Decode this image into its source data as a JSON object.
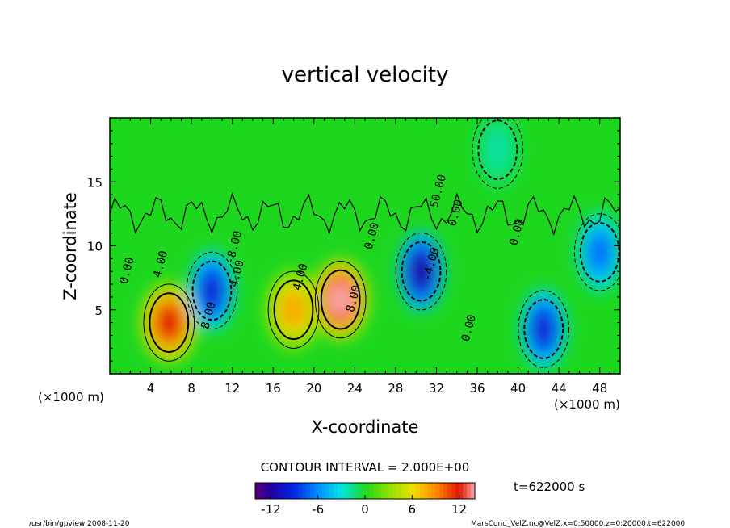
{
  "chart_data": {
    "type": "heatmap",
    "title": "vertical velocity",
    "xlabel": "X-coordinate",
    "ylabel": "Z-coordinate",
    "xlim": [
      0,
      50
    ],
    "ylim": [
      0,
      20
    ],
    "x_ticks": [
      4,
      8,
      12,
      16,
      20,
      24,
      28,
      32,
      36,
      40,
      44,
      48
    ],
    "y_ticks": [
      5,
      10,
      15
    ],
    "x_unit_left": "(×1000 m)",
    "x_unit_right": "(×1000 m)",
    "contour_interval_text": "CONTOUR INTERVAL = 2.000E+00",
    "contour_labels": [
      "0.00",
      "4.00",
      "8.00",
      "-4.00",
      "-8.00",
      "4.00",
      "8.00",
      "0.00",
      "0.00",
      "50.00",
      "0.00",
      "0.00",
      "-4.00"
    ],
    "time_label": "t=622000 s",
    "colorbar": {
      "min": -14,
      "max": 14,
      "ticks": [
        -12,
        -6,
        0,
        6,
        12
      ]
    },
    "extrema": [
      {
        "x": 5.8,
        "z": 4.0,
        "value": 12
      },
      {
        "x": 22.6,
        "z": 5.8,
        "value": 14
      },
      {
        "x": 18.0,
        "z": 5.0,
        "value": 8
      },
      {
        "x": 10.0,
        "z": 6.5,
        "value": -10
      },
      {
        "x": 30.5,
        "z": 8.0,
        "value": -12
      },
      {
        "x": 42.5,
        "z": 3.5,
        "value": -10
      },
      {
        "x": 48.0,
        "z": 9.5,
        "value": -7
      },
      {
        "x": 38.0,
        "z": 17.5,
        "value": -2
      }
    ]
  },
  "footer": {
    "left": "/usr/bin/gpview   2008-11-20",
    "right": "MarsCond_VelZ.nc@VelZ,x=0:50000,z=0:20000,t=622000"
  }
}
